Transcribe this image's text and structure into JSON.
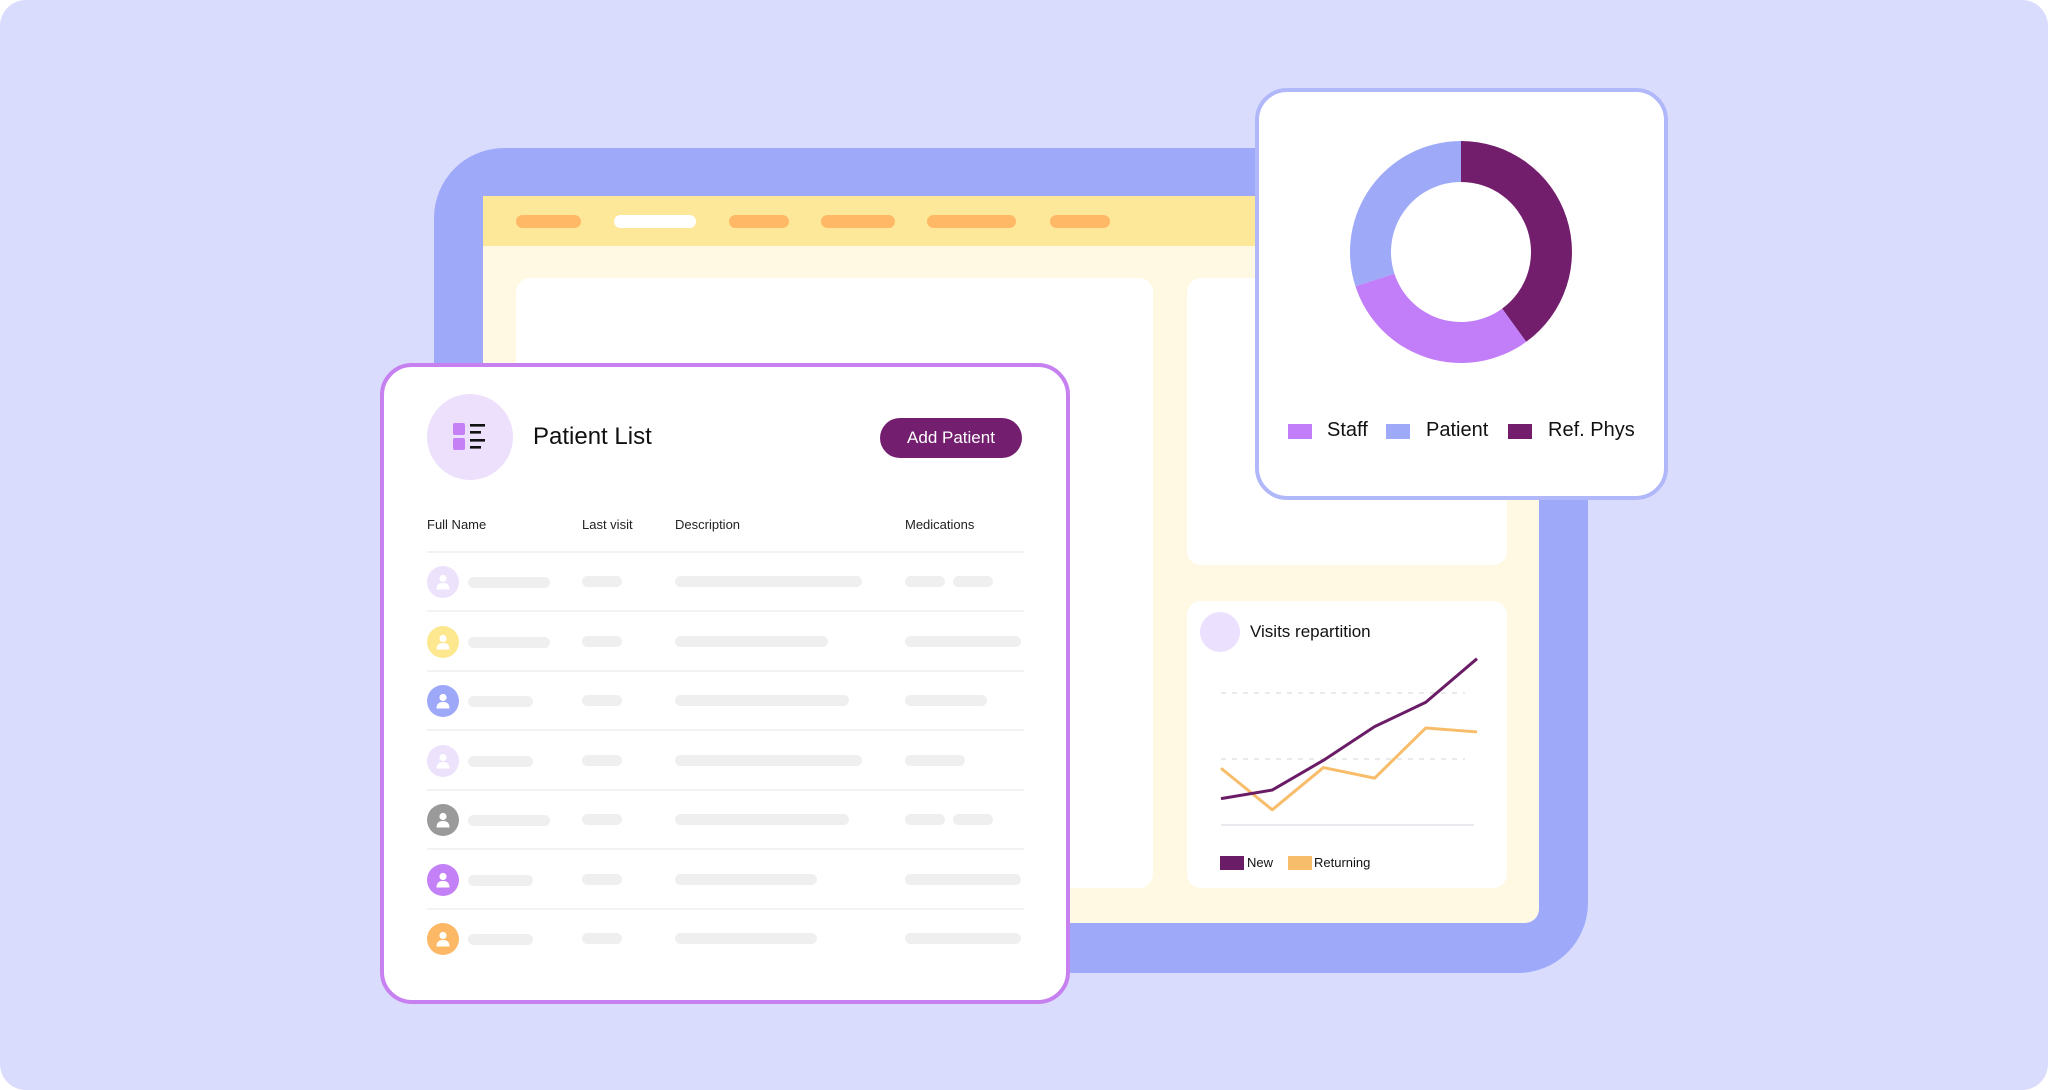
{
  "patient_list": {
    "title": "Patient List",
    "add_button": "Add Patient",
    "columns": [
      "Full Name",
      "Last visit",
      "Description",
      "Medications"
    ],
    "avatar_colors": [
      "#ede2fc",
      "#fde88f",
      "#9da8f9",
      "#ede2fc",
      "#9a9a9a",
      "#c480f6",
      "#fdb865"
    ]
  },
  "colors": {
    "accent": "#731e6e",
    "tablet_frame": "#9eaaf9",
    "topbar": "#fde89a",
    "nav_pill": "#feb866",
    "patient_card_border": "#c680f0"
  },
  "chart_data": [
    {
      "type": "pie",
      "variant": "donut",
      "categories": [
        "Staff",
        "Patient",
        "Ref. Phys"
      ],
      "values": [
        30,
        30,
        40
      ],
      "colors": [
        "#c27ef8",
        "#9eaaf8",
        "#721e6d"
      ],
      "legend": "bottom"
    },
    {
      "type": "line",
      "title": "Visits repartition",
      "x": [
        1,
        2,
        3,
        4,
        5,
        6
      ],
      "series": [
        {
          "name": "New",
          "color": "#6a1c66",
          "values": [
            0.4,
            0.53,
            0.98,
            1.49,
            1.86,
            2.52
          ]
        },
        {
          "name": "Returning",
          "color": "#f8bd6a",
          "values": [
            0.86,
            0.23,
            0.87,
            0.71,
            1.47,
            1.41
          ]
        }
      ],
      "ylim": [
        0,
        2.6
      ],
      "grid": "dashed horizontal",
      "legend": "bottom"
    }
  ]
}
